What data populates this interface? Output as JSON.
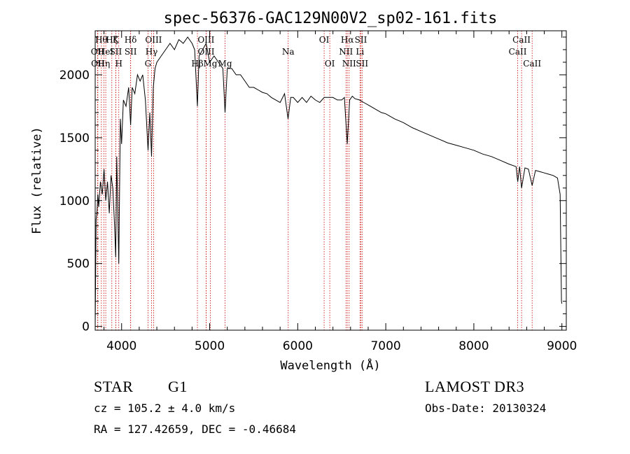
{
  "chart_data": {
    "type": "line",
    "title": "spec-56376-GAC129N00V2_sp02-161.fits",
    "xlabel": "Wavelength (Å)",
    "ylabel": "Flux (relative)",
    "xlim": [
      3700,
      9050
    ],
    "ylim": [
      -30,
      2350
    ],
    "xticks": [
      4000,
      5000,
      6000,
      7000,
      8000,
      9000
    ],
    "yticks": [
      0,
      500,
      1000,
      1500,
      2000
    ],
    "xtick_labels": [
      "4000",
      "5000",
      "6000",
      "7000",
      "8000",
      "9000"
    ],
    "ytick_labels": [
      "0",
      "500",
      "1000",
      "1500",
      "2000"
    ],
    "series": [
      {
        "name": "spectrum",
        "x": [
          3700,
          3710,
          3720,
          3730,
          3740,
          3760,
          3780,
          3800,
          3820,
          3840,
          3860,
          3880,
          3900,
          3920,
          3933,
          3945,
          3968,
          3985,
          4000,
          4020,
          4050,
          4080,
          4102,
          4120,
          4150,
          4180,
          4210,
          4240,
          4270,
          4300,
          4320,
          4340,
          4360,
          4380,
          4400,
          4450,
          4500,
          4550,
          4600,
          4650,
          4700,
          4750,
          4800,
          4830,
          4861,
          4880,
          4920,
          4960,
          5000,
          5050,
          5100,
          5150,
          5175,
          5200,
          5250,
          5300,
          5350,
          5400,
          5450,
          5500,
          5550,
          5600,
          5650,
          5700,
          5750,
          5800,
          5850,
          5890,
          5920,
          5950,
          6000,
          6050,
          6100,
          6150,
          6200,
          6250,
          6300,
          6350,
          6400,
          6450,
          6500,
          6530,
          6563,
          6590,
          6620,
          6650,
          6700,
          6750,
          6800,
          6850,
          6900,
          6950,
          7000,
          7100,
          7200,
          7300,
          7400,
          7500,
          7600,
          7700,
          7800,
          7900,
          8000,
          8100,
          8200,
          8300,
          8400,
          8480,
          8498,
          8520,
          8542,
          8580,
          8620,
          8662,
          8700,
          8750,
          8800,
          8850,
          8900,
          8950,
          8980,
          8995,
          9000
        ],
        "values": [
          0,
          850,
          900,
          1050,
          950,
          1150,
          1050,
          1250,
          1000,
          1150,
          900,
          1200,
          1100,
          800,
          550,
          1350,
          500,
          1650,
          1450,
          1800,
          1750,
          1900,
          1600,
          1900,
          1850,
          2000,
          1950,
          2000,
          1800,
          1400,
          1700,
          1350,
          1900,
          2050,
          2100,
          2150,
          2200,
          2250,
          2200,
          2280,
          2250,
          2300,
          2250,
          2200,
          1750,
          2150,
          2200,
          2250,
          2100,
          2150,
          2100,
          2050,
          1700,
          2050,
          2050,
          2000,
          2000,
          1950,
          1900,
          1900,
          1880,
          1860,
          1850,
          1820,
          1800,
          1780,
          1850,
          1650,
          1820,
          1820,
          1780,
          1820,
          1780,
          1830,
          1800,
          1780,
          1820,
          1820,
          1820,
          1800,
          1800,
          1820,
          1450,
          1800,
          1830,
          1810,
          1800,
          1780,
          1760,
          1740,
          1720,
          1700,
          1690,
          1650,
          1620,
          1580,
          1550,
          1520,
          1490,
          1460,
          1440,
          1420,
          1400,
          1370,
          1350,
          1320,
          1290,
          1270,
          1150,
          1270,
          1100,
          1260,
          1250,
          1120,
          1240,
          1230,
          1220,
          1210,
          1200,
          1180,
          1050,
          200,
          180
        ]
      }
    ],
    "lines": [
      {
        "wl": 3727,
        "label": "OII",
        "row": 2
      },
      {
        "wl": 3730,
        "label": "OII",
        "row": 3
      },
      {
        "wl": 3770,
        "label": "Hθ",
        "row": 1
      },
      {
        "wl": 3798,
        "label": "Hη",
        "row": 3
      },
      {
        "wl": 3820,
        "label": "HeI",
        "row": 2
      },
      {
        "wl": 3889,
        "label": "Hζ",
        "row": 1
      },
      {
        "wl": 3933,
        "label": "K",
        "row": 1
      },
      {
        "wl": 3934,
        "label": "SII",
        "row": 2
      },
      {
        "wl": 3968,
        "label": "H",
        "row": 3
      },
      {
        "wl": 4102,
        "label": "Hδ",
        "row": 1
      },
      {
        "wl": 4103,
        "label": "SII",
        "row": 2
      },
      {
        "wl": 4300,
        "label": "G",
        "row": 3
      },
      {
        "wl": 4340,
        "label": "Hγ",
        "row": 2
      },
      {
        "wl": 4363,
        "label": "OIII",
        "row": 1
      },
      {
        "wl": 4861,
        "label": "Hβ",
        "row": 3
      },
      {
        "wl": 4959,
        "label": "OIII",
        "row": 1
      },
      {
        "wl": 4960,
        "label": "OIII",
        "row": 2
      },
      {
        "wl": 5007,
        "label": "Mg",
        "row": 3
      },
      {
        "wl": 5175,
        "label": "Mg",
        "row": 3
      },
      {
        "wl": 5892,
        "label": "Na",
        "row": 2
      },
      {
        "wl": 6300,
        "label": "OI",
        "row": 1
      },
      {
        "wl": 6364,
        "label": "OI",
        "row": 3
      },
      {
        "wl": 6548,
        "label": "NII",
        "row": 2
      },
      {
        "wl": 6563,
        "label": "Hα",
        "row": 1
      },
      {
        "wl": 6584,
        "label": "NII",
        "row": 3
      },
      {
        "wl": 6707,
        "label": "Li",
        "row": 2
      },
      {
        "wl": 6717,
        "label": "SII",
        "row": 1
      },
      {
        "wl": 6731,
        "label": "SII",
        "row": 3
      },
      {
        "wl": 8498,
        "label": "CaII",
        "row": 2
      },
      {
        "wl": 8542,
        "label": "CaII",
        "row": 1
      },
      {
        "wl": 8662,
        "label": "CaII",
        "row": 3
      }
    ]
  },
  "info": {
    "object_class": "STAR",
    "subclass": "G1",
    "redshift": "cz = 105.2 ± 4.0 km/s",
    "coords": "RA = 127.42659, DEC =  -0.46684",
    "survey": "LAMOST DR3",
    "obs_date": "Obs-Date: 20130324"
  },
  "colors": {
    "spectrum": "#000000",
    "line_markers": "#cc0000",
    "axes": "#000000"
  }
}
